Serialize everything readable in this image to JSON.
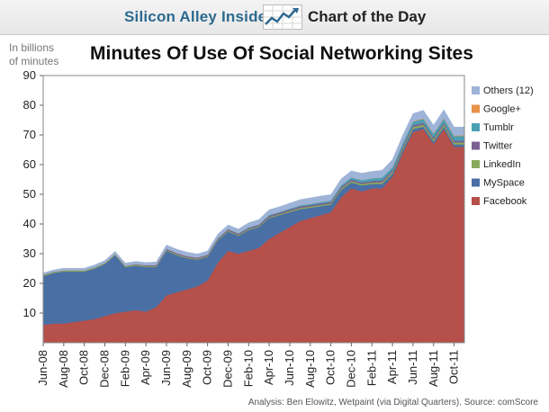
{
  "header": {
    "brand": "Silicon Alley Insider",
    "section": "Chart of the Day"
  },
  "chart_data": {
    "type": "area",
    "stacked": true,
    "title": "Minutes Of Use Of Social Networking Sites",
    "ylabel": "In billions of minutes",
    "xlabel": "",
    "ylim": [
      0,
      90
    ],
    "yticks": [
      10,
      20,
      30,
      40,
      50,
      60,
      70,
      80,
      90
    ],
    "grid": false,
    "legend_position": "right",
    "x": [
      "Jun-08",
      "Jul-08",
      "Aug-08",
      "Sep-08",
      "Oct-08",
      "Nov-08",
      "Dec-08",
      "Jan-09",
      "Feb-09",
      "Mar-09",
      "Apr-09",
      "May-09",
      "Jun-09",
      "Jul-09",
      "Aug-09",
      "Sep-09",
      "Oct-09",
      "Nov-09",
      "Dec-09",
      "Jan-10",
      "Feb-10",
      "Mar-10",
      "Apr-10",
      "May-10",
      "Jun-10",
      "Jul-10",
      "Aug-10",
      "Sep-10",
      "Oct-10",
      "Nov-10",
      "Dec-10",
      "Jan-11",
      "Feb-11",
      "Mar-11",
      "Apr-11",
      "May-11",
      "Jun-11",
      "Jul-11",
      "Aug-11",
      "Sep-11",
      "Oct-11",
      "Nov-11"
    ],
    "x_tick_labels": [
      "Jun-08",
      "Aug-08",
      "Oct-08",
      "Dec-08",
      "Feb-09",
      "Apr-09",
      "Jun-09",
      "Aug-09",
      "Oct-09",
      "Dec-09",
      "Feb-10",
      "Apr-10",
      "Jun-10",
      "Aug-10",
      "Oct-10",
      "Dec-10",
      "Feb-11",
      "Apr-11",
      "Jun-11",
      "Aug-11",
      "Oct-11"
    ],
    "series": [
      {
        "name": "Facebook",
        "color": "#b5504b",
        "values": [
          6,
          6.5,
          6.5,
          7,
          7.5,
          8,
          9,
          10,
          10.5,
          11,
          10.5,
          12,
          16,
          17,
          18,
          19,
          21,
          27,
          31,
          30,
          31,
          32,
          35,
          37,
          39,
          41,
          42,
          43,
          44,
          49,
          52,
          51,
          52,
          52,
          56,
          64,
          71,
          72,
          67,
          72,
          66,
          66
        ]
      },
      {
        "name": "MySpace",
        "color": "#4a6fa5",
        "values": [
          16.5,
          17,
          17.5,
          17,
          16.5,
          17,
          17.5,
          19.5,
          15,
          15,
          15,
          13.5,
          15,
          12.5,
          10.5,
          9,
          8,
          7.5,
          6.5,
          6,
          7,
          7,
          7,
          6,
          5,
          4,
          3.5,
          3,
          2.5,
          2.5,
          2,
          2,
          1.5,
          1.5,
          1,
          1,
          1,
          0.8,
          0.8,
          0.8,
          0.8,
          0.8
        ]
      },
      {
        "name": "LinkedIn",
        "color": "#8aaa5b",
        "values": [
          0.3,
          0.3,
          0.3,
          0.3,
          0.3,
          0.3,
          0.3,
          0.3,
          0.3,
          0.3,
          0.3,
          0.3,
          0.3,
          0.3,
          0.3,
          0.3,
          0.3,
          0.3,
          0.3,
          0.3,
          0.3,
          0.3,
          0.3,
          0.3,
          0.4,
          0.4,
          0.4,
          0.4,
          0.4,
          0.5,
          0.5,
          0.5,
          0.5,
          0.6,
          0.6,
          0.6,
          0.7,
          0.7,
          0.7,
          0.7,
          0.7,
          0.7
        ]
      },
      {
        "name": "Twitter",
        "color": "#7a5f93",
        "values": [
          0.1,
          0.1,
          0.1,
          0.1,
          0.1,
          0.1,
          0.1,
          0.1,
          0.1,
          0.2,
          0.3,
          0.4,
          0.4,
          0.4,
          0.4,
          0.4,
          0.3,
          0.4,
          0.4,
          0.4,
          0.4,
          0.4,
          0.5,
          0.5,
          0.5,
          0.5,
          0.5,
          0.5,
          0.5,
          0.5,
          0.5,
          0.5,
          0.5,
          0.6,
          0.6,
          0.6,
          0.6,
          0.6,
          0.6,
          0.6,
          0.6,
          0.6
        ]
      },
      {
        "name": "Tumblr",
        "color": "#4a9fb4",
        "values": [
          0,
          0,
          0,
          0,
          0,
          0,
          0,
          0,
          0,
          0,
          0,
          0,
          0,
          0,
          0,
          0,
          0.1,
          0.1,
          0.1,
          0.2,
          0.2,
          0.2,
          0.3,
          0.3,
          0.3,
          0.4,
          0.4,
          0.5,
          0.5,
          0.6,
          0.7,
          0.8,
          0.9,
          1,
          1,
          1.1,
          1.2,
          1.3,
          1.3,
          1.4,
          1.5,
          1.6
        ]
      },
      {
        "name": "Google+",
        "color": "#e8924a",
        "values": [
          0,
          0,
          0,
          0,
          0,
          0,
          0,
          0,
          0,
          0,
          0,
          0,
          0,
          0,
          0,
          0,
          0,
          0,
          0,
          0,
          0,
          0,
          0,
          0,
          0,
          0,
          0,
          0,
          0,
          0,
          0,
          0,
          0,
          0,
          0,
          0,
          0.1,
          0.2,
          0.2,
          0.2,
          0.2,
          0.2
        ]
      },
      {
        "name": "Others (12)",
        "color": "#9db3d7",
        "values": [
          0.6,
          0.6,
          0.7,
          0.7,
          0.7,
          0.8,
          0.8,
          0.9,
          0.9,
          0.9,
          0.9,
          1,
          1.2,
          1.3,
          1.3,
          1.2,
          1.2,
          1.3,
          1.4,
          1.4,
          1.5,
          1.6,
          1.7,
          1.7,
          1.8,
          1.9,
          2,
          2,
          2,
          2.1,
          2.2,
          2.3,
          2.3,
          2.4,
          2.5,
          2.6,
          2.6,
          2.7,
          2.7,
          2.8,
          2.8,
          2.8
        ]
      }
    ],
    "annotation": "Analysis: Ben Elowitz, Wetpaint (via Digital Quarters). Source: comScore"
  }
}
